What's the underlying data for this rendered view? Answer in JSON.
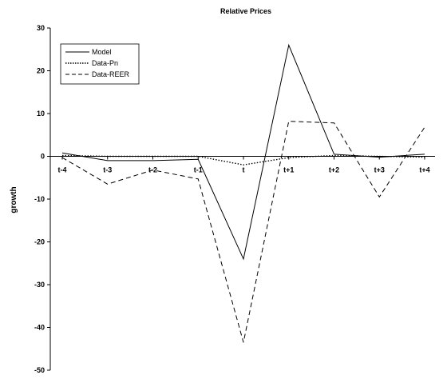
{
  "chart_data": {
    "type": "line",
    "title": "Relative Prices",
    "xlabel": "",
    "ylabel": "growth",
    "categories": [
      "t-4",
      "t-3",
      "t-2",
      "t-1",
      "t",
      "t+1",
      "t+2",
      "t+3",
      "t+4"
    ],
    "ylim": [
      -50,
      30
    ],
    "yticks": [
      30,
      20,
      10,
      0,
      -10,
      -20,
      -30,
      -40,
      -50
    ],
    "grid": false,
    "legend_position": "top-left",
    "series": [
      {
        "name": "Model",
        "style": "solid",
        "color": "#000000",
        "values": [
          0.8,
          -1.0,
          -1.0,
          -0.7,
          -24.0,
          26.0,
          0.5,
          -0.2,
          0.5
        ]
      },
      {
        "name": "Data-Pn",
        "style": "dotted",
        "color": "#000000",
        "values": [
          0.2,
          0.0,
          0.0,
          0.0,
          -2.0,
          -0.3,
          0.2,
          0.0,
          -0.2
        ]
      },
      {
        "name": "Data-REER",
        "style": "dashed",
        "color": "#000000",
        "values": [
          -0.3,
          -6.5,
          -3.2,
          -5.3,
          -43.5,
          8.2,
          7.8,
          -9.5,
          6.8
        ]
      }
    ]
  }
}
